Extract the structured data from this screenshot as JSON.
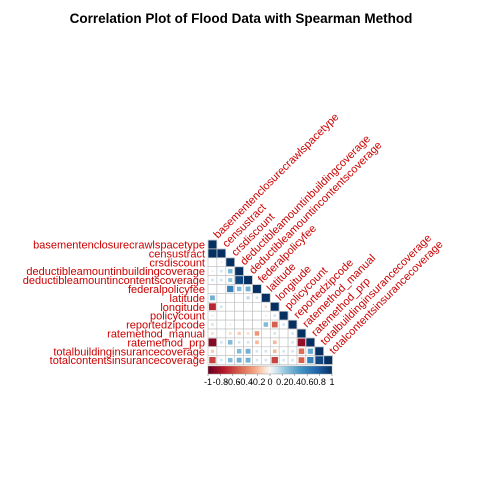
{
  "chart_data": {
    "type": "heatmap",
    "title": "Correlation Plot of Flood Data with Spearman Method",
    "layout": "lower-triangle",
    "variables": [
      "basementenclosurecrawlspacetype",
      "censustract",
      "crsdiscount",
      "deductibleamountinbuildingcoverage",
      "deductibleamountincontentscoverage",
      "federalpolicyfee",
      "latitude",
      "longitude",
      "policycount",
      "reportedzipcode",
      "ratemethod_manual",
      "ratemethod_prp",
      "totalbuildinginsurancecoverage",
      "totalcontentsinsurancecoverage"
    ],
    "cells": [
      [
        1,
        0,
        1.0
      ],
      [
        2,
        1,
        0.05
      ],
      [
        3,
        0,
        0.05
      ],
      [
        3,
        1,
        0.1
      ],
      [
        3,
        2,
        0.3
      ],
      [
        4,
        0,
        0.1
      ],
      [
        4,
        1,
        0.1
      ],
      [
        4,
        2,
        0.25
      ],
      [
        4,
        3,
        0.9
      ],
      [
        5,
        2,
        0.6
      ],
      [
        5,
        3,
        0.3
      ],
      [
        5,
        4,
        0.35
      ],
      [
        6,
        0,
        0.35
      ],
      [
        6,
        4,
        0.15
      ],
      [
        6,
        5,
        0.1
      ],
      [
        7,
        0,
        -0.7
      ],
      [
        7,
        1,
        0.1
      ],
      [
        7,
        6,
        -0.1
      ],
      [
        8,
        0,
        0.05
      ],
      [
        8,
        6,
        0.05
      ],
      [
        8,
        7,
        0.1
      ],
      [
        9,
        0,
        0.1
      ],
      [
        9,
        2,
        0.05
      ],
      [
        9,
        6,
        0.3
      ],
      [
        9,
        7,
        -0.5
      ],
      [
        9,
        8,
        0.1
      ],
      [
        10,
        0,
        -0.1
      ],
      [
        10,
        2,
        -0.1
      ],
      [
        10,
        3,
        -0.15
      ],
      [
        10,
        4,
        -0.1
      ],
      [
        10,
        5,
        -0.3
      ],
      [
        10,
        7,
        0.1
      ],
      [
        10,
        9,
        0.1
      ],
      [
        11,
        0,
        -0.9
      ],
      [
        11,
        1,
        0.1
      ],
      [
        11,
        2,
        0.3
      ],
      [
        11,
        3,
        0.1
      ],
      [
        11,
        4,
        0.1
      ],
      [
        11,
        5,
        -0.2
      ],
      [
        11,
        7,
        -0.2
      ],
      [
        11,
        9,
        0.1
      ],
      [
        11,
        10,
        -0.85
      ],
      [
        12,
        0,
        -0.15
      ],
      [
        12,
        3,
        0.3
      ],
      [
        12,
        4,
        0.35
      ],
      [
        12,
        5,
        0.1
      ],
      [
        12,
        6,
        0.1
      ],
      [
        12,
        7,
        -0.2
      ],
      [
        12,
        8,
        0.1
      ],
      [
        12,
        9,
        0.1
      ],
      [
        12,
        10,
        -0.45
      ],
      [
        12,
        11,
        0.4
      ],
      [
        13,
        0,
        -0.6
      ],
      [
        13,
        1,
        0.1
      ],
      [
        13,
        2,
        0.3
      ],
      [
        13,
        3,
        0.35
      ],
      [
        13,
        4,
        0.35
      ],
      [
        13,
        5,
        0.1
      ],
      [
        13,
        6,
        0.1
      ],
      [
        13,
        7,
        -0.6
      ],
      [
        13,
        8,
        0.1
      ],
      [
        13,
        9,
        0.1
      ],
      [
        13,
        10,
        -0.5
      ],
      [
        13,
        11,
        0.6
      ],
      [
        13,
        12,
        0.9
      ]
    ],
    "colorbar": {
      "min": -1,
      "max": 1,
      "tick_labels": [
        "-1",
        "-0.8",
        "-0.6",
        "-0.4",
        "-0.2",
        "0",
        "0.2",
        "0.4",
        "0.6",
        "0.8",
        "1"
      ]
    },
    "colors": {
      "negative": "#67001f",
      "neutral": "#f7f7f7",
      "positive": "#053061",
      "label": "#cc0000",
      "grid": "#bdbdbd"
    },
    "grid": true
  }
}
